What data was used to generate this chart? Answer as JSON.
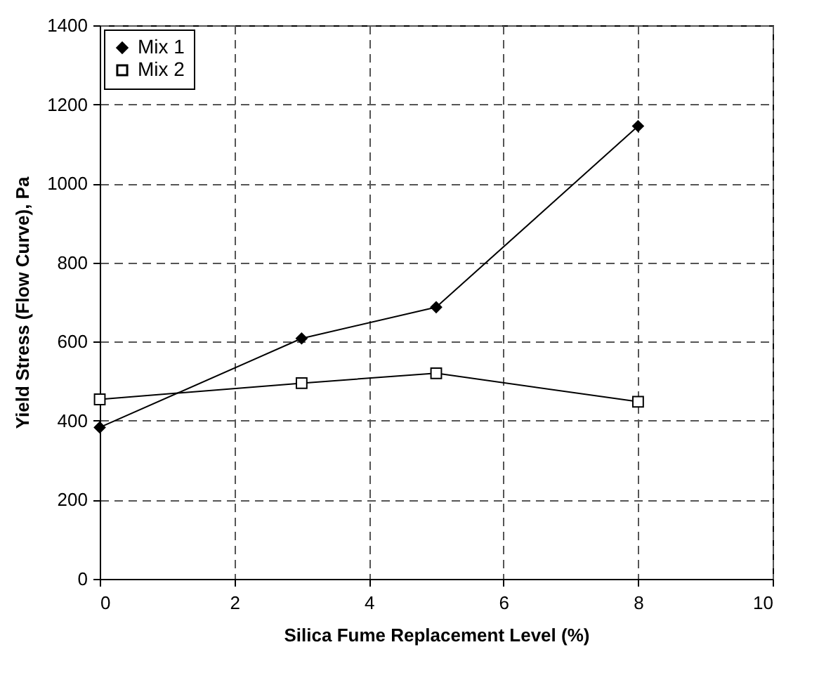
{
  "chart_data": {
    "type": "line",
    "xlabel": "Silica Fume Replacement Level (%)",
    "ylabel": "Yield Stress (Flow Curve), Pa",
    "x": [
      0,
      3,
      5,
      8
    ],
    "series": [
      {
        "name": "Mix 1",
        "color": "#000000",
        "marker": "diamond",
        "values": [
          383,
          608,
          687,
          1145
        ]
      },
      {
        "name": "Mix 2",
        "color": "#000000",
        "marker": "square",
        "values": [
          454,
          495,
          520,
          448
        ]
      }
    ],
    "xlim": [
      0,
      10
    ],
    "xticks": [
      0,
      2,
      4,
      6,
      8,
      10
    ],
    "ylim": [
      0,
      1400
    ],
    "yticks": [
      0,
      200,
      400,
      600,
      800,
      1000,
      1200,
      1400
    ],
    "grid": true,
    "legend": "top left",
    "line_style": "solid"
  }
}
